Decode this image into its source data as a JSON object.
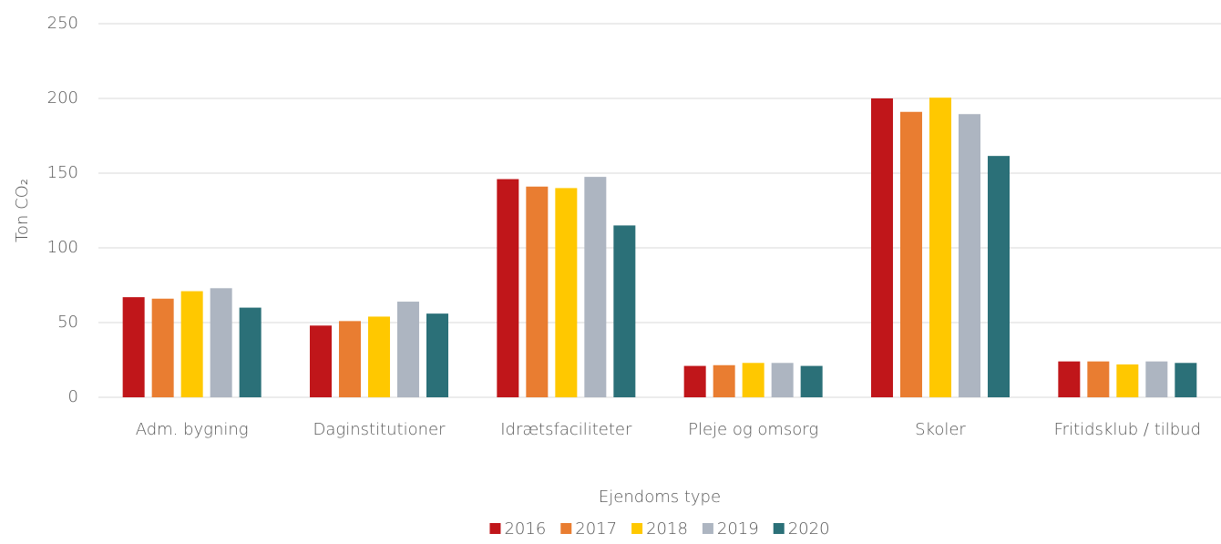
{
  "chart_data": {
    "type": "bar",
    "x_label": "Ejendoms type",
    "y_label": "Ton CO₂",
    "categories": [
      "Adm. bygning",
      "Daginstitutioner",
      "Idrætsfaciliteter",
      "Pleje og omsorg",
      "Skoler",
      "Fritidsklub / tilbud"
    ],
    "series": [
      {
        "name": "2016",
        "color": "#c0161a",
        "values": [
          67,
          48,
          146,
          21,
          200,
          24
        ]
      },
      {
        "name": "2017",
        "color": "#e97d31",
        "values": [
          66,
          51,
          141,
          21.5,
          191,
          24
        ]
      },
      {
        "name": "2018",
        "color": "#ffc800",
        "values": [
          71,
          54,
          140,
          23,
          200.5,
          22
        ]
      },
      {
        "name": "2019",
        "color": "#adb5c1",
        "values": [
          73,
          64,
          147.5,
          23,
          189.5,
          24
        ]
      },
      {
        "name": "2020",
        "color": "#2b7078",
        "values": [
          60,
          56,
          115,
          21,
          161.5,
          23
        ]
      }
    ],
    "ylim": [
      0,
      250
    ],
    "yticks": [
      0,
      50,
      100,
      150,
      200,
      250
    ],
    "grid": true,
    "legend": "bottom"
  }
}
